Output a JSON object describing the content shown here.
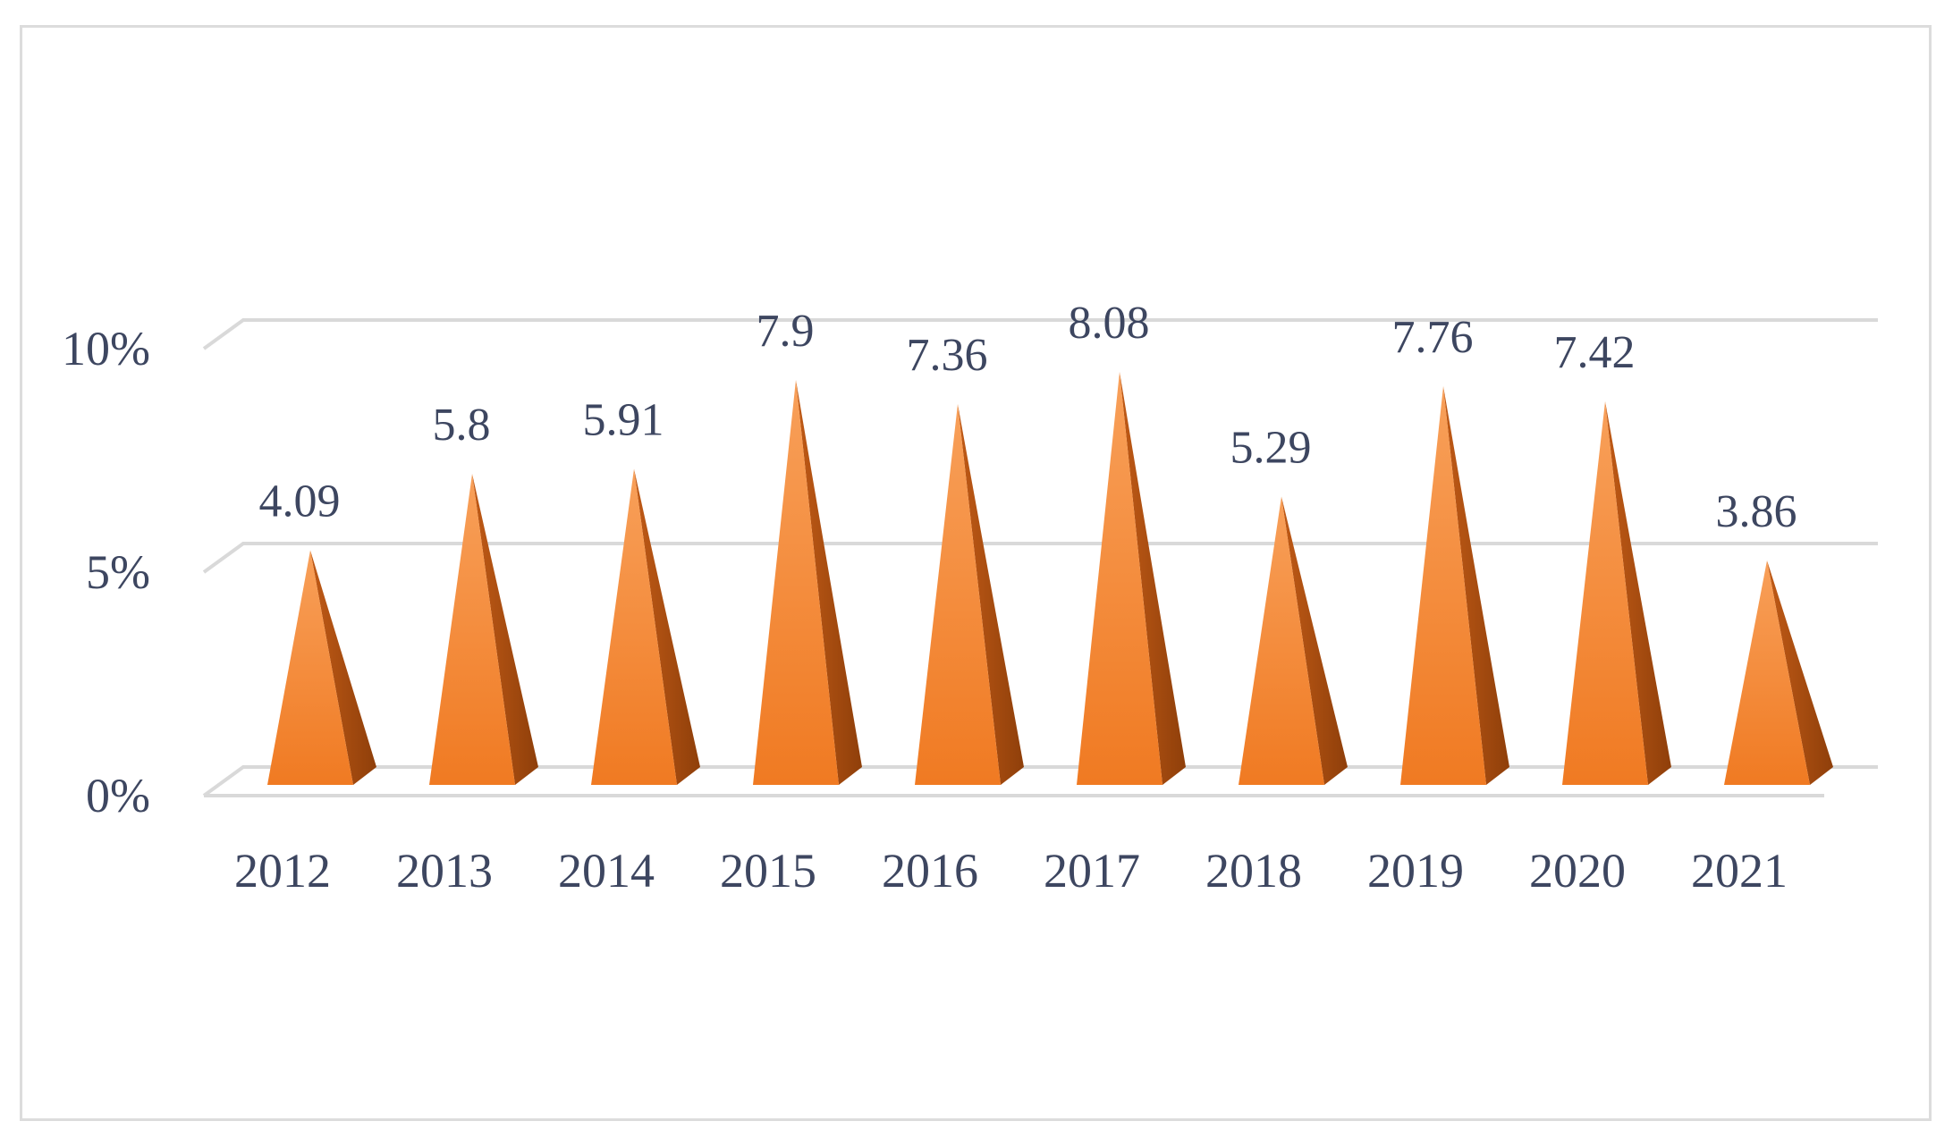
{
  "chart_data": {
    "type": "bar",
    "style": "3d-pyramid",
    "categories": [
      "2012",
      "2013",
      "2014",
      "2015",
      "2016",
      "2017",
      "2018",
      "2019",
      "2020",
      "2021"
    ],
    "values": [
      4.09,
      5.8,
      5.91,
      7.9,
      7.36,
      8.08,
      5.29,
      7.76,
      7.42,
      3.86
    ],
    "data_labels": [
      "4.09",
      "5.8",
      "5.91",
      "7.9",
      "7.36",
      "8.08",
      "5.29",
      "7.76",
      "7.42",
      "3.86"
    ],
    "y_ticks": [
      {
        "value": 0,
        "label": "0%"
      },
      {
        "value": 5,
        "label": "5%"
      },
      {
        "value": 10,
        "label": "10%"
      }
    ],
    "ylim": [
      0,
      10
    ],
    "grid": true,
    "legend": "none",
    "colors": {
      "bar_front": "#f57f2a",
      "bar_side": "#b65312",
      "gridline": "#d9d9d9",
      "text": "#3d4660"
    }
  }
}
